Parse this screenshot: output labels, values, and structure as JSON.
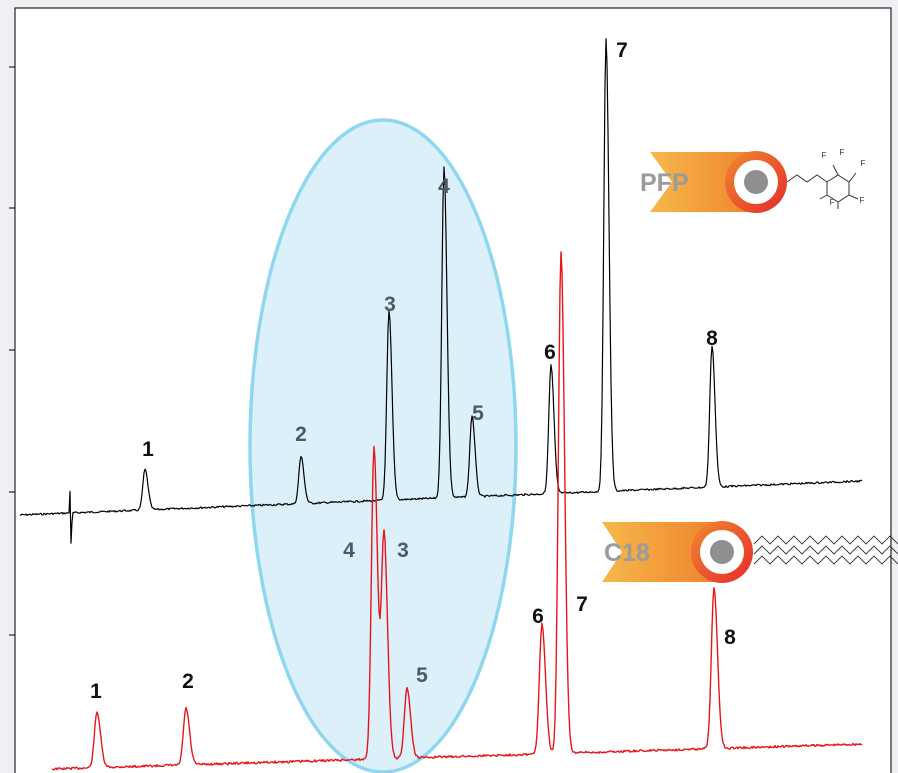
{
  "chart_data": {
    "type": "line",
    "title": "",
    "xlabel": "",
    "ylabel": "",
    "series": [
      {
        "name": "PFP",
        "color": "#000000",
        "peaks": [
          {
            "label": "1",
            "x": 145,
            "y": 0.3
          },
          {
            "label": "2",
            "x": 301,
            "y": 0.35
          },
          {
            "label": "3",
            "x": 389,
            "y": 1.4
          },
          {
            "label": "4",
            "x": 444,
            "y": 2.45
          },
          {
            "label": "5",
            "x": 472,
            "y": 0.6
          },
          {
            "label": "6",
            "x": 551,
            "y": 0.95
          },
          {
            "label": "7",
            "x": 606,
            "y": 3.35
          },
          {
            "label": "8",
            "x": 712,
            "y": 1.05
          }
        ]
      },
      {
        "name": "C18",
        "color": "#e8141b",
        "peaks": [
          {
            "label": "1",
            "x": 97,
            "y": 0.41
          },
          {
            "label": "2",
            "x": 186,
            "y": 0.42
          },
          {
            "label": "4",
            "x": 374,
            "y": 2.31
          },
          {
            "label": "3",
            "x": 384,
            "y": 1.66
          },
          {
            "label": "5",
            "x": 407,
            "y": 0.52
          },
          {
            "label": "6",
            "x": 542,
            "y": 0.96
          },
          {
            "label": "7",
            "x": 561,
            "y": 3.71
          },
          {
            "label": "8",
            "x": 714,
            "y": 1.19
          }
        ]
      }
    ],
    "highlight": {
      "shape": "ellipse",
      "color": "#bde4f4",
      "peaks": [
        "2",
        "3",
        "4",
        "5"
      ]
    },
    "grid": false
  },
  "badges": {
    "pfp": {
      "label": "PFP",
      "icon": "pfp-phase-icon"
    },
    "c18": {
      "label": "C18",
      "icon": "c18-phase-icon"
    }
  },
  "molecule": {
    "atoms": [
      "F",
      "F",
      "F",
      "F",
      "F"
    ]
  },
  "colors": {
    "pfp_trace": "#000000",
    "c18_trace": "#e8141b",
    "highlight": "#bde4f4",
    "badge_orange": "#f39a34",
    "badge_red": "#e8352b"
  }
}
